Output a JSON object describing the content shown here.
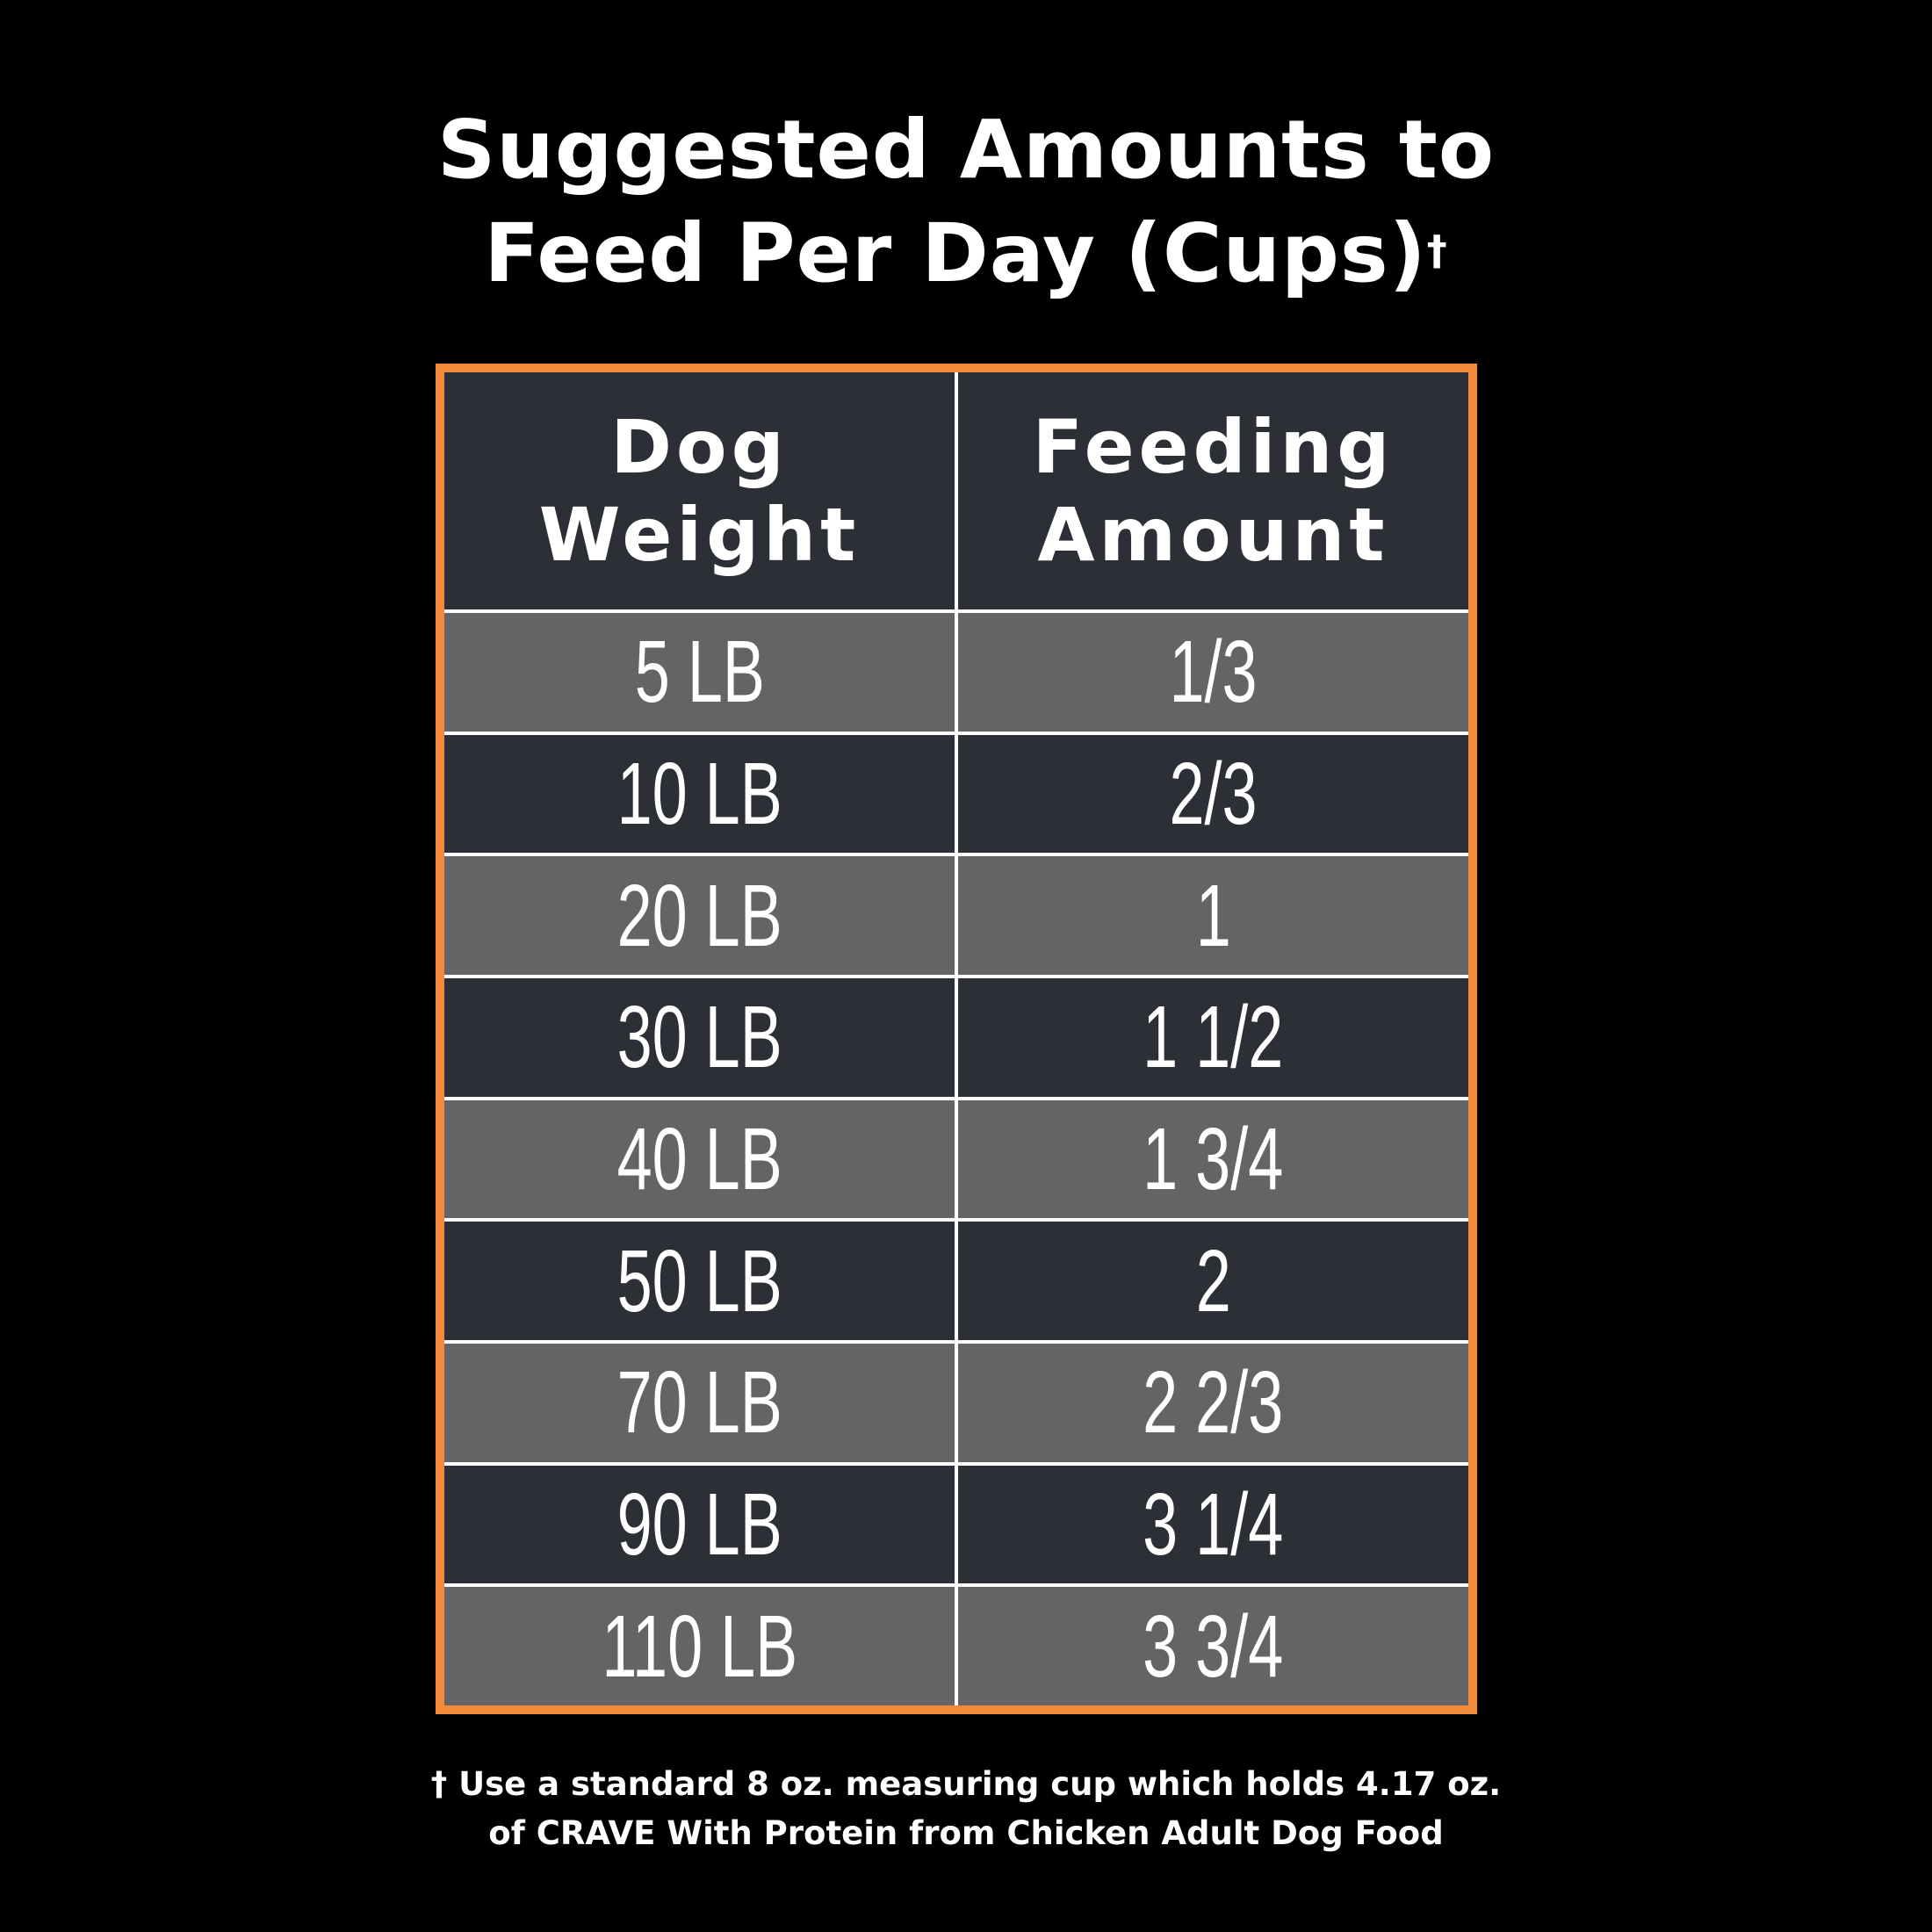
{
  "title": {
    "line1": "Suggested Amounts to",
    "line2": "Feed Per Day (Cups)",
    "dagger": "†"
  },
  "table": {
    "headers": {
      "weight_line1": "Dog",
      "weight_line2": "Weight",
      "amount_line1": "Feeding",
      "amount_line2": "Amount"
    },
    "rows": [
      {
        "weight": "5 LB",
        "amount": "1/3"
      },
      {
        "weight": "10 LB",
        "amount": "2/3"
      },
      {
        "weight": "20 LB",
        "amount": "1"
      },
      {
        "weight": "30 LB",
        "amount": "1 1/2"
      },
      {
        "weight": "40 LB",
        "amount": "1 3/4"
      },
      {
        "weight": "50 LB",
        "amount": "2"
      },
      {
        "weight": "70 LB",
        "amount": "2 2/3"
      },
      {
        "weight": "90 LB",
        "amount": "3 1/4"
      },
      {
        "weight": "110 LB",
        "amount": "3 3/4"
      }
    ]
  },
  "footnote": {
    "line1": "† Use a standard 8 oz. measuring cup which holds 4.17 oz.",
    "line2": "of CRAVE With Protein from Chicken Adult Dog Food"
  },
  "colors": {
    "background": "#000000",
    "frame": "#f28a3b",
    "header_row": "#2d2f37",
    "row_light": "#646466",
    "row_dark": "#2d2f37",
    "text": "#ffffff"
  }
}
